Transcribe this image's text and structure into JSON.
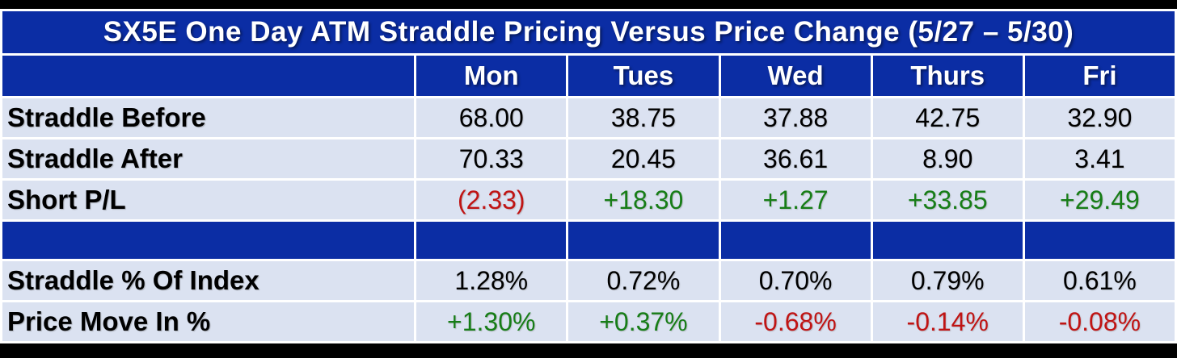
{
  "table": {
    "title": "SX5E One Day ATM Straddle Pricing Versus Price Change (5/27 – 5/30)",
    "corner_label": "",
    "columns": [
      "Mon",
      "Tues",
      "Wed",
      "Thurs",
      "Fri"
    ],
    "rows": [
      {
        "label": "Straddle Before",
        "cells": [
          {
            "text": "68.00",
            "color": "#000000"
          },
          {
            "text": "38.75",
            "color": "#000000"
          },
          {
            "text": "37.88",
            "color": "#000000"
          },
          {
            "text": "42.75",
            "color": "#000000"
          },
          {
            "text": "32.90",
            "color": "#000000"
          }
        ]
      },
      {
        "label": "Straddle After",
        "cells": [
          {
            "text": "70.33",
            "color": "#000000"
          },
          {
            "text": "20.45",
            "color": "#000000"
          },
          {
            "text": "36.61",
            "color": "#000000"
          },
          {
            "text": "8.90",
            "color": "#000000"
          },
          {
            "text": "3.41",
            "color": "#000000"
          }
        ]
      },
      {
        "label": "Short P/L",
        "cells": [
          {
            "text": "(2.33)",
            "color": "#c01414"
          },
          {
            "text": "+18.30",
            "color": "#177d17"
          },
          {
            "text": "+1.27",
            "color": "#177d17"
          },
          {
            "text": "+33.85",
            "color": "#177d17"
          },
          {
            "text": "+29.49",
            "color": "#177d17"
          }
        ]
      },
      {
        "label": "Straddle % Of Index",
        "cells": [
          {
            "text": "1.28%",
            "color": "#000000"
          },
          {
            "text": "0.72%",
            "color": "#000000"
          },
          {
            "text": "0.70%",
            "color": "#000000"
          },
          {
            "text": "0.79%",
            "color": "#000000"
          },
          {
            "text": "0.61%",
            "color": "#000000"
          }
        ]
      },
      {
        "label": "Price Move In %",
        "cells": [
          {
            "text": "+1.30%",
            "color": "#177d17"
          },
          {
            "text": "+0.37%",
            "color": "#177d17"
          },
          {
            "text": "-0.68%",
            "color": "#c01414"
          },
          {
            "text": "-0.14%",
            "color": "#c01414"
          },
          {
            "text": "-0.08%",
            "color": "#c01414"
          }
        ]
      }
    ]
  },
  "colors": {
    "header_blue": "#0b2da4",
    "row_bg": "#dbe2f1",
    "positive_green": "#177d17",
    "negative_red": "#c01414",
    "neutral_black": "#000000",
    "frame_black": "#000000",
    "grid_white": "#ffffff"
  },
  "chart_data": {
    "type": "table",
    "title": "SX5E One Day ATM Straddle Pricing Versus Price Change (5/27 – 5/30)",
    "columns": [
      "",
      "Mon",
      "Tues",
      "Wed",
      "Thurs",
      "Fri"
    ],
    "rows": [
      [
        "Straddle Before",
        "68.00",
        "38.75",
        "37.88",
        "42.75",
        "32.90"
      ],
      [
        "Straddle After",
        "70.33",
        "20.45",
        "36.61",
        "8.90",
        "3.41"
      ],
      [
        "Short P/L",
        "(2.33)",
        "+18.30",
        "+1.27",
        "+33.85",
        "+29.49"
      ],
      [
        "",
        "",
        "",
        "",
        "",
        ""
      ],
      [
        "Straddle % Of Index",
        "1.28%",
        "0.72%",
        "0.70%",
        "0.79%",
        "0.61%"
      ],
      [
        "Price Move In %",
        "+1.30%",
        "+0.37%",
        "-0.68%",
        "-0.14%",
        "-0.08%"
      ]
    ],
    "notes": "Short P/L and Price Move In % cells are green when positive, red (and/or parenthesized) when negative; other numeric cells black."
  }
}
